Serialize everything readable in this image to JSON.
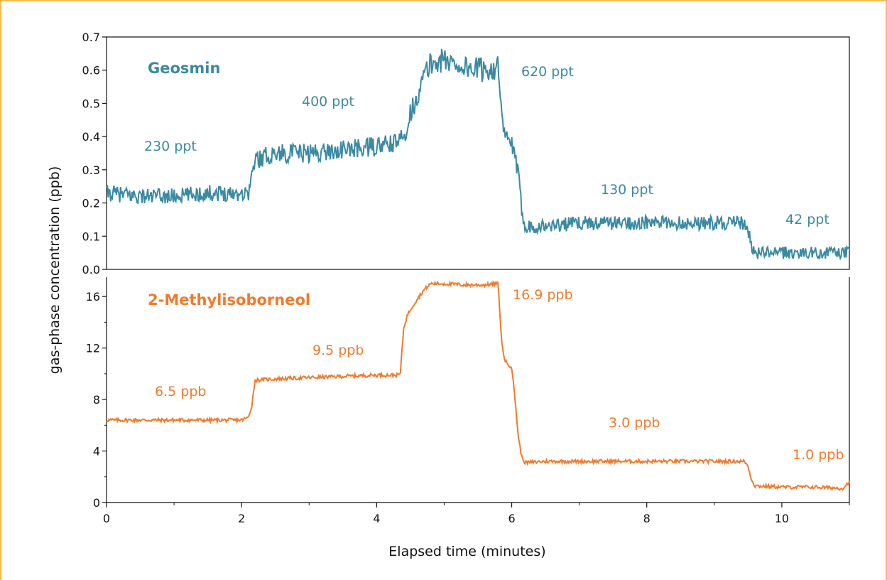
{
  "colors": {
    "geosmin": "#3b8aa3",
    "mib": "#f07a2c",
    "frame": "#fbbd4a",
    "axis": "#111111"
  },
  "chart_data": [
    {
      "type": "line",
      "title": "Geosmin",
      "xlabel": "Elapsed time (minutes)",
      "ylabel": "gas-phase concentration (ppb)",
      "xlim": [
        0,
        11
      ],
      "ylim": [
        0.0,
        0.7
      ],
      "x_ticks": [
        "0",
        "2",
        "4",
        "6",
        "8",
        "10"
      ],
      "y_ticks": [
        "0.0",
        "0.1",
        "0.2",
        "0.3",
        "0.4",
        "0.5",
        "0.6",
        "0.7"
      ],
      "series": [
        {
          "color": "#3b8aa3",
          "x": [
            0,
            0.5,
            1.0,
            1.5,
            2.0,
            2.1,
            2.2,
            2.5,
            3.0,
            3.5,
            4.0,
            4.3,
            4.4,
            4.5,
            4.6,
            4.7,
            4.8,
            5.0,
            5.3,
            5.6,
            5.8,
            5.85,
            5.9,
            6.0,
            6.1,
            6.15,
            6.2,
            6.5,
            7.0,
            7.5,
            8.0,
            8.5,
            9.0,
            9.4,
            9.5,
            9.55,
            9.6,
            10.0,
            10.5,
            11.0
          ],
          "y": [
            0.23,
            0.22,
            0.22,
            0.23,
            0.23,
            0.23,
            0.33,
            0.35,
            0.35,
            0.36,
            0.37,
            0.38,
            0.4,
            0.47,
            0.52,
            0.58,
            0.62,
            0.63,
            0.61,
            0.6,
            0.61,
            0.45,
            0.4,
            0.38,
            0.28,
            0.18,
            0.13,
            0.13,
            0.14,
            0.14,
            0.14,
            0.14,
            0.14,
            0.14,
            0.12,
            0.07,
            0.05,
            0.05,
            0.05,
            0.05
          ]
        }
      ],
      "annotations": [
        "230 ppt",
        "400 ppt",
        "620 ppt",
        "130 ppt",
        "42 ppt"
      ]
    },
    {
      "type": "line",
      "title": "2-Methylisoborneol",
      "xlabel": "Elapsed time (minutes)",
      "ylabel": "gas-phase concentration (ppb)",
      "xlim": [
        0,
        11
      ],
      "ylim": [
        0,
        17.5
      ],
      "x_ticks": [
        "0",
        "2",
        "4",
        "6",
        "8",
        "10"
      ],
      "y_ticks": [
        "0",
        "4",
        "8",
        "12",
        "16"
      ],
      "series": [
        {
          "color": "#f07a2c",
          "x": [
            0,
            0.5,
            1.0,
            1.5,
            2.0,
            2.1,
            2.15,
            2.2,
            2.5,
            3.0,
            3.5,
            4.0,
            4.3,
            4.35,
            4.4,
            4.45,
            4.5,
            4.6,
            4.7,
            4.8,
            5.0,
            5.3,
            5.6,
            5.8,
            5.85,
            5.9,
            6.0,
            6.05,
            6.1,
            6.15,
            6.2,
            6.5,
            7.0,
            7.5,
            8.0,
            8.5,
            9.0,
            9.45,
            9.5,
            9.55,
            9.6,
            10.0,
            10.5,
            10.9,
            11.0
          ],
          "y": [
            6.4,
            6.4,
            6.4,
            6.4,
            6.4,
            6.6,
            7.5,
            9.5,
            9.6,
            9.7,
            9.8,
            9.9,
            9.9,
            10.0,
            13.5,
            14.5,
            15.0,
            15.8,
            16.5,
            17.0,
            17.0,
            16.9,
            16.9,
            17.0,
            12.5,
            11.0,
            10.5,
            8.0,
            5.0,
            3.5,
            3.1,
            3.2,
            3.2,
            3.2,
            3.2,
            3.2,
            3.2,
            3.2,
            2.8,
            1.8,
            1.3,
            1.2,
            1.2,
            1.1,
            1.6
          ]
        }
      ],
      "annotations": [
        "6.5 ppb",
        "9.5 ppb",
        "16.9 ppb",
        "3.0 ppb",
        "1.0 ppb"
      ]
    }
  ]
}
